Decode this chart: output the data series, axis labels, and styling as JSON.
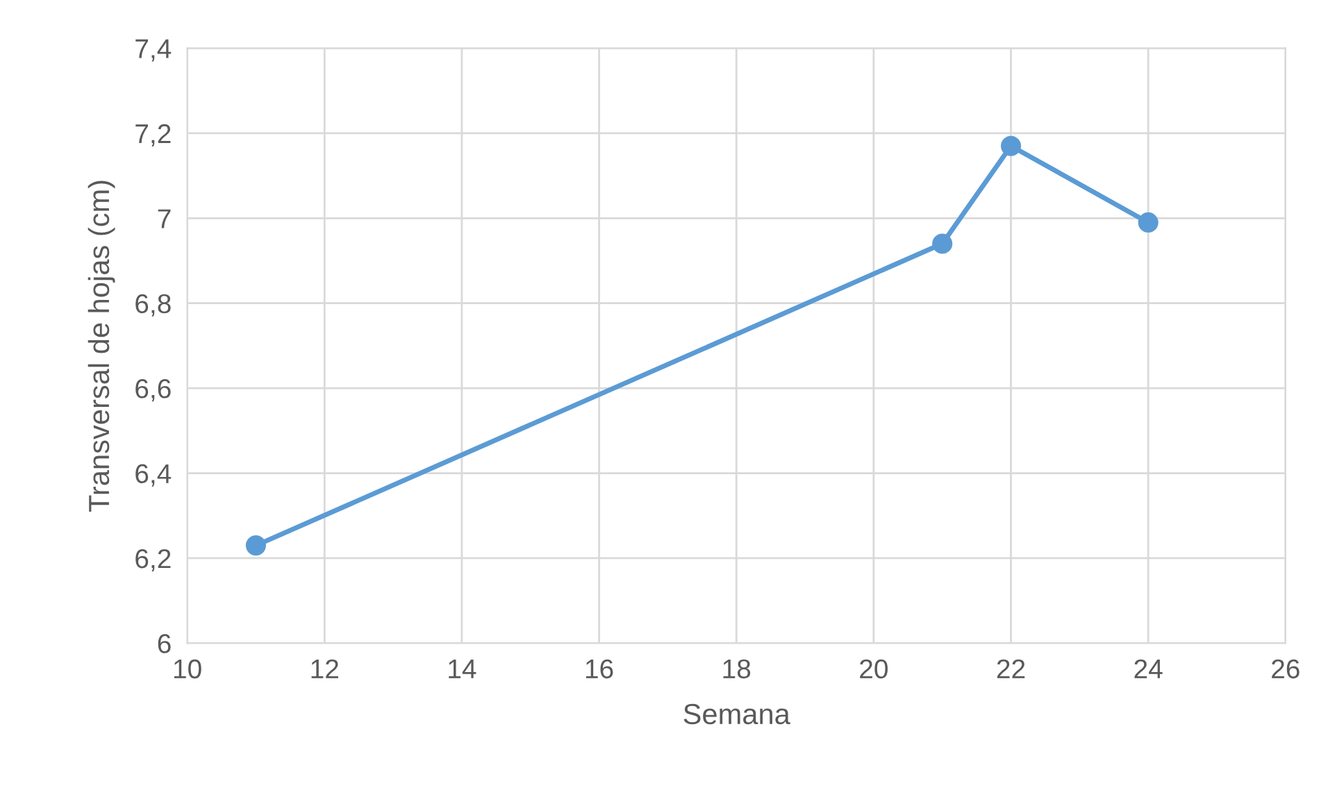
{
  "chart_data": {
    "type": "line",
    "xlabel": "Semana",
    "ylabel": "Transversal de hojas (cm)",
    "x": [
      11,
      21,
      22,
      24
    ],
    "series": [
      {
        "color": "#5b9bd5",
        "values": [
          6.23,
          6.94,
          7.17,
          6.99
        ]
      }
    ],
    "xlim": [
      10,
      26
    ],
    "xticks": [
      10,
      12,
      14,
      16,
      18,
      20,
      22,
      24,
      26
    ],
    "ylim": [
      6,
      7.4
    ],
    "yticks": [
      6,
      {
        "value": 6.2,
        "label": "6,2"
      },
      {
        "value": 6.4,
        "label": "6,4"
      },
      {
        "value": 6.6,
        "label": "6,6"
      },
      {
        "value": 6.8,
        "label": "6,8"
      },
      7,
      {
        "value": 7.2,
        "label": "7,2"
      },
      {
        "value": 7.4,
        "label": "7,4"
      }
    ],
    "grid": true,
    "marker": "circle",
    "line_style": "solid"
  }
}
